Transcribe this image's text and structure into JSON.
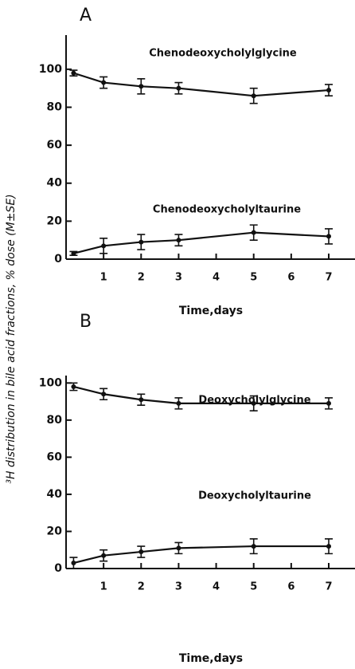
{
  "chart_data": [
    {
      "type": "line",
      "title": "A",
      "xlabel": "Time,days",
      "ylabel": "³H distribution in bile acid fractions, % dose (M±SE)",
      "xlim": [
        0,
        7.7
      ],
      "xticks": [
        1,
        2,
        3,
        4,
        5,
        6,
        7
      ],
      "ylim": [
        0,
        118
      ],
      "yticks": [
        0,
        20,
        40,
        60,
        80,
        100
      ],
      "x": [
        0.2,
        1,
        2,
        3,
        5,
        7
      ],
      "series": [
        {
          "name": "Chenodeoxycholylglycine",
          "color": "#111111",
          "values": [
            98,
            93,
            91,
            90,
            86,
            89
          ],
          "errors": [
            1.5,
            3,
            4,
            3,
            4,
            3
          ]
        },
        {
          "name": "Chenodeoxycholyltaurine",
          "color": "#111111",
          "values": [
            3,
            7,
            9,
            10,
            14,
            12
          ],
          "errors": [
            1,
            4,
            4,
            3,
            4,
            4
          ]
        }
      ]
    },
    {
      "type": "line",
      "title": "B",
      "xlabel": "Time,days",
      "xlim": [
        0,
        7.7
      ],
      "xticks": [
        1,
        2,
        3,
        4,
        5,
        6,
        7
      ],
      "ylim": [
        0,
        104
      ],
      "yticks": [
        0,
        20,
        40,
        60,
        80,
        100
      ],
      "x": [
        0.2,
        1,
        2,
        3,
        5,
        7
      ],
      "series": [
        {
          "name": "Deoxycholylglycine",
          "color": "#111111",
          "values": [
            98,
            94,
            91,
            89,
            89,
            89
          ],
          "errors": [
            2,
            3,
            3,
            3,
            4,
            3
          ]
        },
        {
          "name": "Deoxycholyltaurine",
          "color": "#111111",
          "values": [
            3,
            7,
            9,
            11,
            12,
            12
          ],
          "errors": [
            3,
            3,
            3,
            3,
            4,
            4
          ]
        }
      ]
    }
  ]
}
